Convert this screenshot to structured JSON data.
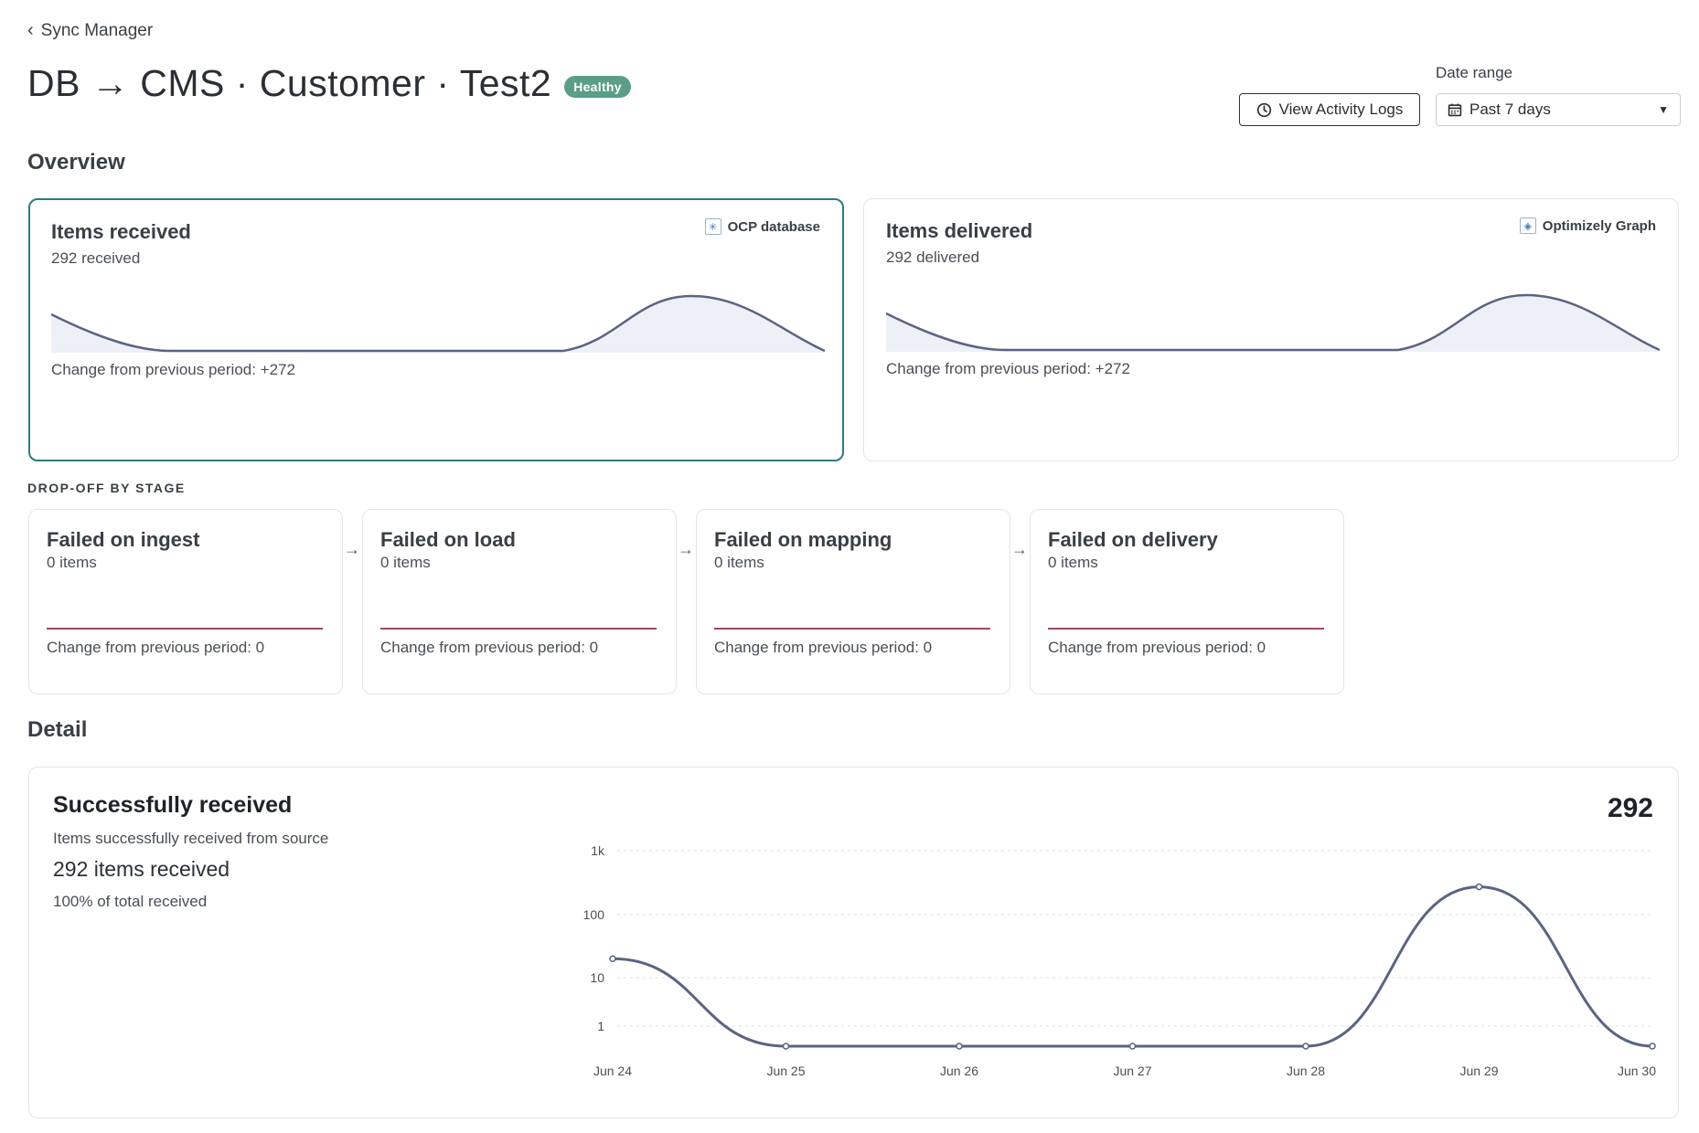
{
  "nav": {
    "back_label": "Sync Manager"
  },
  "header": {
    "title": "DB → CMS · Customer · Test2",
    "status_badge": "Healthy",
    "view_logs_label": "View Activity Logs",
    "date_range_label": "Date range",
    "date_range_value": "Past 7 days"
  },
  "overview": {
    "heading": "Overview",
    "received": {
      "title": "Items received",
      "subtitle": "292 received",
      "source": "OCP database",
      "change": "Change from previous period: +272"
    },
    "delivered": {
      "title": "Items delivered",
      "subtitle": "292 delivered",
      "source": "Optimizely Graph",
      "change": "Change from previous period: +272"
    }
  },
  "dropoff": {
    "heading": "DROP-OFF BY STAGE",
    "stages": [
      {
        "title": "Failed on ingest",
        "count": "0 items",
        "change": "Change from previous period: 0"
      },
      {
        "title": "Failed on load",
        "count": "0 items",
        "change": "Change from previous period: 0"
      },
      {
        "title": "Failed on mapping",
        "count": "0 items",
        "change": "Change from previous period: 0"
      },
      {
        "title": "Failed on delivery",
        "count": "0 items",
        "change": "Change from previous period: 0"
      }
    ]
  },
  "detail": {
    "heading": "Detail",
    "title": "Successfully received",
    "subtitle": "Items successfully received from source",
    "count_text": "292 items received",
    "pct_text": "100% of total received",
    "total": "292"
  },
  "colors": {
    "accent": "#2e7a80",
    "badge": "#5a9e86",
    "line": "#5a6482",
    "area": "#eef0f8",
    "failure": "#9b4a5e"
  },
  "chart_data": {
    "type": "line",
    "x": [
      "Jun 24",
      "Jun 25",
      "Jun 26",
      "Jun 27",
      "Jun 28",
      "Jun 29",
      "Jun 30"
    ],
    "series": [
      {
        "values": [
          20,
          0,
          0,
          0,
          0,
          272,
          0
        ]
      }
    ],
    "yscale": "log",
    "yticks": [
      "1",
      "10",
      "100",
      "1k"
    ],
    "grid": true
  }
}
